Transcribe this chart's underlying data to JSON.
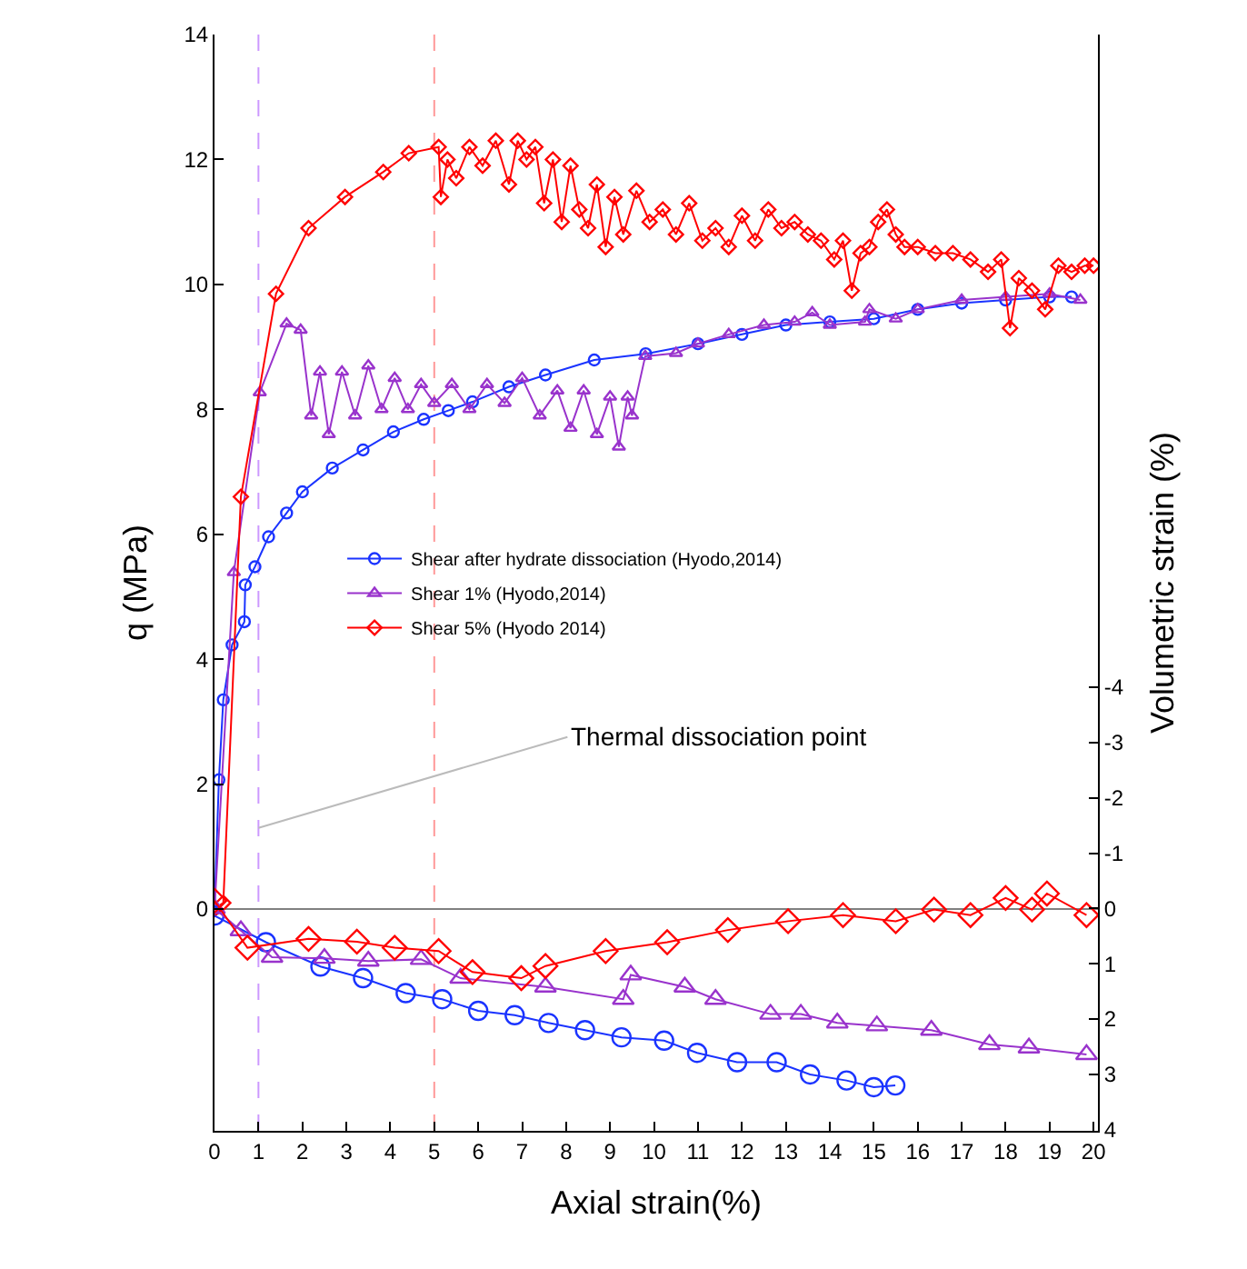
{
  "chart_data": {
    "type": "line",
    "xlabel": "Axial strain(%)",
    "ylabel": "q (MPa)",
    "y2label": "Volumetric strain (%)",
    "xlim": [
      0,
      20.1
    ],
    "xticks": [
      0,
      1,
      2,
      3,
      4,
      5,
      6,
      7,
      8,
      9,
      10,
      11,
      12,
      13,
      14,
      15,
      16,
      17,
      18,
      19,
      20
    ],
    "ylim": [
      -3.55,
      14
    ],
    "yticks": [
      0,
      2,
      4,
      6,
      8,
      10,
      12,
      14
    ],
    "y2lim": [
      4.02,
      -15.8
    ],
    "y2ticks": [
      -4,
      -3,
      -2,
      -1,
      0,
      1,
      2,
      3,
      4
    ],
    "grid": false,
    "legend": "center left",
    "series": [
      {
        "name": "Shear after hydrate dissociation (Hyodo,2014)",
        "color": "#1a33ff",
        "marker": "circle",
        "x": [
          0,
          0.1,
          0.2,
          0.4,
          0.68,
          0.7,
          0.92,
          1.23,
          1.64,
          2.0,
          2.68,
          3.38,
          4.07,
          4.76,
          5.32,
          5.87,
          6.7,
          7.53,
          8.64,
          9.81,
          11,
          12,
          13,
          14,
          15,
          16,
          17,
          18,
          19,
          19.5
        ],
        "values": [
          0,
          2.07,
          3.35,
          4.23,
          4.6,
          5.19,
          5.48,
          5.96,
          6.34,
          6.68,
          7.06,
          7.35,
          7.64,
          7.84,
          7.98,
          8.12,
          8.36,
          8.55,
          8.79,
          8.89,
          9.05,
          9.2,
          9.35,
          9.4,
          9.45,
          9.6,
          9.7,
          9.75,
          9.8,
          9.8
        ]
      },
      {
        "name": "Shear 1% (Hyodo,2014)",
        "color": "#9933cc",
        "marker": "triangle",
        "x": [
          0,
          0.44,
          1.03,
          1.64,
          1.96,
          2.2,
          2.4,
          2.6,
          2.9,
          3.2,
          3.5,
          3.8,
          4.1,
          4.4,
          4.7,
          5.0,
          5.4,
          5.8,
          6.2,
          6.6,
          7.0,
          7.4,
          7.8,
          8.1,
          8.4,
          8.7,
          9.0,
          9.2,
          9.4,
          9.5,
          9.8,
          10.5,
          11,
          11.7,
          12.5,
          13.2,
          13.6,
          14,
          14.8,
          14.9,
          15.5,
          16,
          17,
          18,
          19,
          19.7
        ],
        "values": [
          0,
          5.39,
          8.27,
          9.37,
          9.27,
          7.9,
          8.6,
          7.6,
          8.6,
          7.9,
          8.7,
          8.0,
          8.5,
          8.0,
          8.4,
          8.1,
          8.4,
          8.0,
          8.4,
          8.1,
          8.5,
          7.9,
          8.3,
          7.7,
          8.3,
          7.6,
          8.2,
          7.4,
          8.2,
          7.9,
          8.85,
          8.9,
          9.05,
          9.2,
          9.35,
          9.4,
          9.55,
          9.35,
          9.4,
          9.6,
          9.45,
          9.6,
          9.75,
          9.8,
          9.85,
          9.75
        ]
      },
      {
        "name": "Shear 5% (Hyodo 2014)",
        "color": "#ff0000",
        "marker": "diamond",
        "x": [
          0,
          0.2,
          0.6,
          1.4,
          2.14,
          2.97,
          3.84,
          4.42,
          5.1,
          5.15,
          5.3,
          5.5,
          5.8,
          6.1,
          6.4,
          6.7,
          6.9,
          7.1,
          7.3,
          7.5,
          7.7,
          7.9,
          8.1,
          8.3,
          8.5,
          8.7,
          8.9,
          9.1,
          9.3,
          9.6,
          9.9,
          10.2,
          10.5,
          10.8,
          11.1,
          11.4,
          11.7,
          12.0,
          12.3,
          12.6,
          12.9,
          13.2,
          13.5,
          13.8,
          14.1,
          14.3,
          14.5,
          14.7,
          14.9,
          15.1,
          15.3,
          15.5,
          15.7,
          16.0,
          16.4,
          16.8,
          17.2,
          17.6,
          17.9,
          18.1,
          18.3,
          18.6,
          18.9,
          19.2,
          19.5,
          19.8,
          20.0
        ],
        "values": [
          0,
          0.1,
          6.6,
          9.85,
          10.9,
          11.4,
          11.8,
          12.1,
          12.2,
          11.4,
          12.0,
          11.7,
          12.2,
          11.9,
          12.3,
          11.6,
          12.3,
          12.0,
          12.2,
          11.3,
          12.0,
          11.0,
          11.9,
          11.2,
          10.9,
          11.6,
          10.6,
          11.4,
          10.8,
          11.5,
          11.0,
          11.2,
          10.8,
          11.3,
          10.7,
          10.9,
          10.6,
          11.1,
          10.7,
          11.2,
          10.9,
          11.0,
          10.8,
          10.7,
          10.4,
          10.7,
          9.9,
          10.5,
          10.6,
          11.0,
          11.2,
          10.8,
          10.6,
          10.6,
          10.5,
          10.5,
          10.4,
          10.2,
          10.4,
          9.3,
          10.1,
          9.9,
          9.6,
          10.3,
          10.2,
          10.3,
          10.3
        ]
      },
      {
        "color": "#1a33ff",
        "marker": "circle",
        "axis": "y2",
        "x": [
          0,
          1.17,
          2.41,
          3.38,
          4.35,
          5.18,
          6.0,
          6.83,
          7.6,
          8.43,
          9.26,
          10.23,
          10.98,
          11.89,
          12.79,
          13.55,
          14.38,
          15.0,
          15.49
        ],
        "values": [
          0.13,
          0.61,
          1.05,
          1.26,
          1.53,
          1.64,
          1.85,
          1.93,
          2.07,
          2.2,
          2.33,
          2.39,
          2.61,
          2.78,
          2.78,
          3.0,
          3.11,
          3.23,
          3.2
        ]
      },
      {
        "color": "#9933cc",
        "marker": "triangle",
        "axis": "y2",
        "x": [
          0,
          0.6,
          1.31,
          2.5,
          3.5,
          4.7,
          5.6,
          7.53,
          9.3,
          9.47,
          10.7,
          11.4,
          12.65,
          13.34,
          14.17,
          15.07,
          16.31,
          17.63,
          18.53,
          19.84
        ],
        "values": [
          0,
          0.4,
          0.88,
          0.9,
          0.95,
          0.92,
          1.26,
          1.42,
          1.64,
          1.2,
          1.42,
          1.64,
          1.91,
          1.91,
          2.07,
          2.12,
          2.2,
          2.46,
          2.52,
          2.64
        ]
      },
      {
        "color": "#ff0000",
        "marker": "diamond",
        "axis": "y2",
        "x": [
          0,
          0.75,
          2.14,
          3.24,
          4.1,
          5.1,
          5.87,
          6.98,
          7.53,
          8.9,
          10.3,
          11.68,
          13.05,
          14.3,
          15.5,
          16.37,
          17.2,
          18.0,
          18.6,
          18.94,
          19.84
        ],
        "values": [
          -0.14,
          0.71,
          0.55,
          0.6,
          0.71,
          0.77,
          1.15,
          1.26,
          1.04,
          0.77,
          0.61,
          0.39,
          0.23,
          0.12,
          0.23,
          0.02,
          0.12,
          -0.19,
          0.02,
          -0.27,
          0.12
        ]
      }
    ],
    "ref_lines": [
      {
        "axis": "x",
        "value": 1,
        "color": "#cc99ff",
        "line_style": "dashed"
      },
      {
        "axis": "x",
        "value": 5,
        "color": "#ff9999",
        "line_style": "dashed"
      },
      {
        "axis": "y",
        "value": 0,
        "color": "#808080",
        "line_style": "solid"
      }
    ],
    "annotations": [
      {
        "text": "Thermal dissociation point",
        "x": 1,
        "y": 1.3
      }
    ]
  }
}
